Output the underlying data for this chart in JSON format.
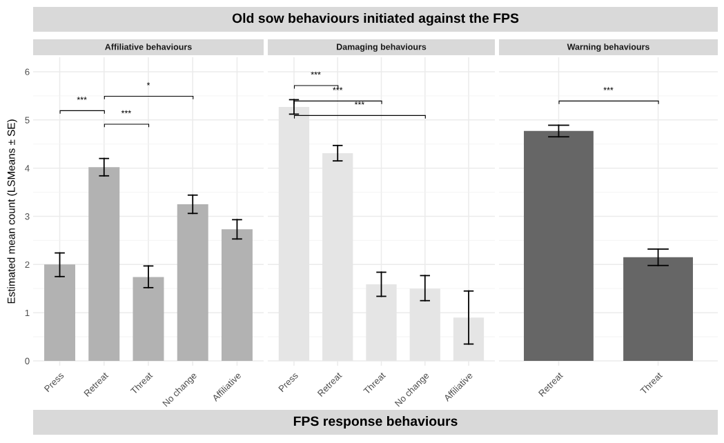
{
  "chart_data": [
    {
      "type": "bar",
      "subtitle": "Affiliative behaviours",
      "ylabel": "Estimated mean count (LSMeans ± SE)",
      "categories": [
        "Press",
        "Retreat",
        "Threat",
        "No change",
        "Affiliative"
      ],
      "series": [
        {
          "color": "#b2b2b2",
          "values": [
            2.0,
            4.02,
            1.74,
            3.25,
            2.73
          ],
          "errors": [
            [
              1.75,
              2.24
            ],
            [
              3.84,
              4.2
            ],
            [
              1.52,
              1.97
            ],
            [
              3.06,
              3.44
            ],
            [
              2.53,
              2.93
            ]
          ]
        }
      ],
      "ylim": [
        -0.1,
        6.3
      ],
      "yticks": [
        0,
        1,
        2,
        3,
        4,
        5,
        6
      ],
      "grid": true,
      "annotations": [
        "***",
        "*",
        "***"
      ]
    },
    {
      "type": "bar",
      "title": "Old sow behaviours initiated against the FPS",
      "subtitle": "Damaging behaviours",
      "xlabel": "FPS response behaviours",
      "categories": [
        "Press",
        "Retreat",
        "Threat",
        "No change",
        "Affiliative"
      ],
      "series": [
        {
          "color": "#e5e5e5",
          "values": [
            5.27,
            4.31,
            1.59,
            1.5,
            0.9
          ],
          "errors": [
            [
              5.12,
              5.42
            ],
            [
              4.15,
              4.47
            ],
            [
              1.34,
              1.84
            ],
            [
              1.25,
              1.77
            ],
            [
              0.35,
              1.45
            ]
          ]
        }
      ],
      "ylim": [
        -0.1,
        6.3
      ],
      "yticks": [
        0,
        1,
        2,
        3,
        4,
        5,
        6
      ],
      "tick_labels": "x",
      "grid": true,
      "annotations": [
        "***",
        "***",
        "***"
      ]
    },
    {
      "type": "bar",
      "subtitle": "Warning behaviours",
      "categories": [
        "Retreat",
        "Threat"
      ],
      "series": [
        {
          "color": "#666666",
          "values": [
            4.77,
            2.15
          ],
          "errors": [
            [
              4.65,
              4.89
            ],
            [
              1.98,
              2.32
            ]
          ]
        }
      ],
      "ylim": [
        -0.1,
        6.3
      ],
      "yticks": [
        0,
        1,
        2,
        3,
        4,
        5,
        6
      ],
      "tick_labels": "x",
      "grid": true,
      "annotations": [
        "***"
      ]
    }
  ]
}
